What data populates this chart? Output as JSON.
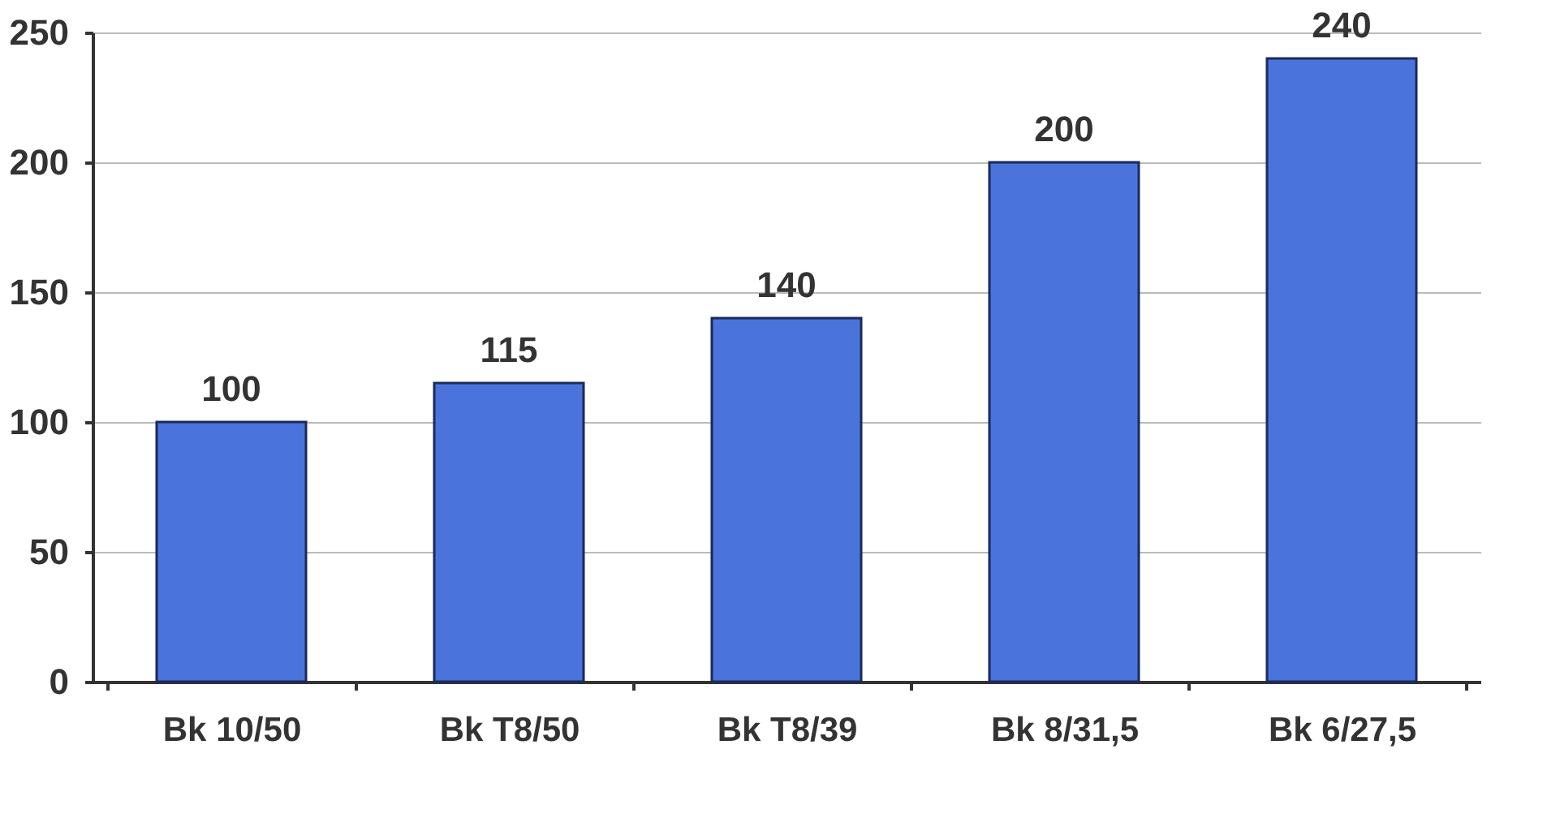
{
  "chart_data": {
    "type": "bar",
    "categories": [
      "Bk 10/50",
      "Bk T8/50",
      "Bk T8/39",
      "Bk 8/31,5",
      "Bk 6/27,5"
    ],
    "values": [
      100,
      115,
      140,
      200,
      240
    ],
    "color": "#4a73dc",
    "ylim": [
      0,
      250
    ],
    "yticks": [
      0,
      50,
      100,
      150,
      200,
      250
    ],
    "grid": "y",
    "data_labels": true
  }
}
